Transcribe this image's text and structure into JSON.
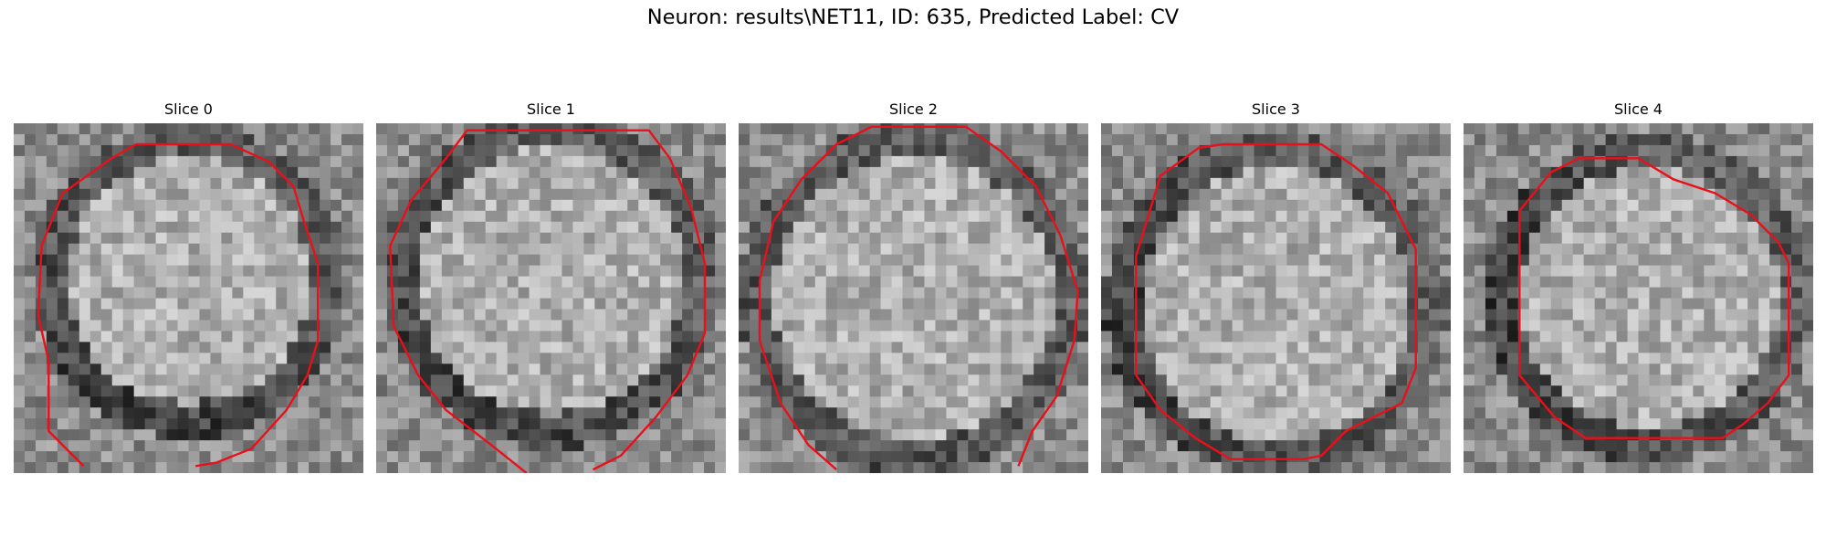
{
  "figure": {
    "title": "Neuron: results\\NET11, ID: 635, Predicted Label: CV"
  },
  "slices": [
    {
      "label": "Slice 0"
    },
    {
      "label": "Slice 1"
    },
    {
      "label": "Slice 2"
    },
    {
      "label": "Slice 3"
    },
    {
      "label": "Slice 4"
    }
  ],
  "colors": {
    "contour": "#e8101a",
    "background": "#ffffff"
  }
}
